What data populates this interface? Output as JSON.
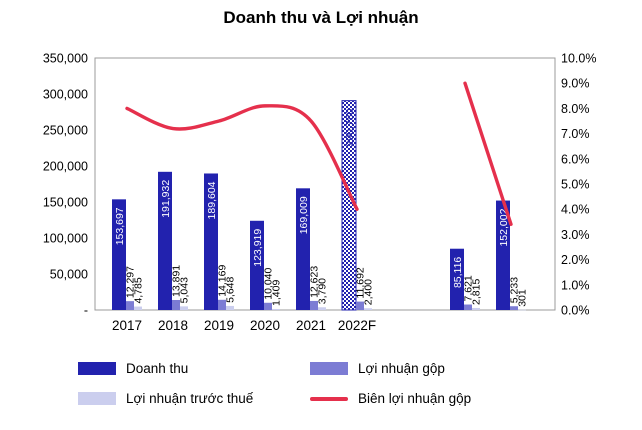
{
  "chart": {
    "title": "Doanh thu và Lợi nhuận"
  },
  "chart_data": {
    "type": "bar",
    "title": "Doanh thu và Lợi nhuận",
    "categories": [
      "2017",
      "2018",
      "2019",
      "2020",
      "2021",
      "2022F",
      "",
      "",
      ""
    ],
    "forecast_index": 5,
    "series": [
      {
        "name": "Doanh thu",
        "type": "bar",
        "axis": "left",
        "color": "#2222AE",
        "values": [
          153697,
          191932,
          189604,
          123919,
          169009,
          290780,
          null,
          85116,
          152002
        ]
      },
      {
        "name": "Lợi nhuận gộp",
        "type": "bar",
        "axis": "left",
        "color": "#7C7CD4",
        "values": [
          12297,
          13891,
          14169,
          10040,
          12623,
          11692,
          null,
          7621,
          5233
        ]
      },
      {
        "name": "Lợi nhuận trước thuế",
        "type": "bar",
        "axis": "left",
        "color": "#CBCEEE",
        "values": [
          4785,
          5043,
          5648,
          1409,
          3790,
          2400,
          null,
          2815,
          301
        ]
      },
      {
        "name": "Biên lợi nhuận gộp",
        "type": "line",
        "axis": "right",
        "unit": "%",
        "color": "#E5304C",
        "values": [
          8.0,
          7.2,
          7.5,
          8.1,
          7.5,
          4.0,
          null,
          9.0,
          3.4
        ]
      }
    ],
    "left_axis": {
      "min": 0,
      "max": 350000,
      "ticks": [
        "350,000",
        "300,000",
        "250,000",
        "200,000",
        "150,000",
        "100,000",
        "50,000",
        "-"
      ]
    },
    "right_axis": {
      "min": 0,
      "max": 10,
      "ticks": [
        "10.0%",
        "9.0%",
        "8.0%",
        "7.0%",
        "6.0%",
        "5.0%",
        "4.0%",
        "3.0%",
        "2.0%",
        "1.0%",
        "0.0%"
      ]
    },
    "legend_position": "bottom",
    "grid": false
  },
  "legend": {
    "items": [
      {
        "label": "Doanh thu"
      },
      {
        "label": "Lợi nhuận gộp"
      },
      {
        "label": "Lợi nhuận trước thuế"
      },
      {
        "label": "Biên lợi nhuận gộp"
      }
    ]
  }
}
